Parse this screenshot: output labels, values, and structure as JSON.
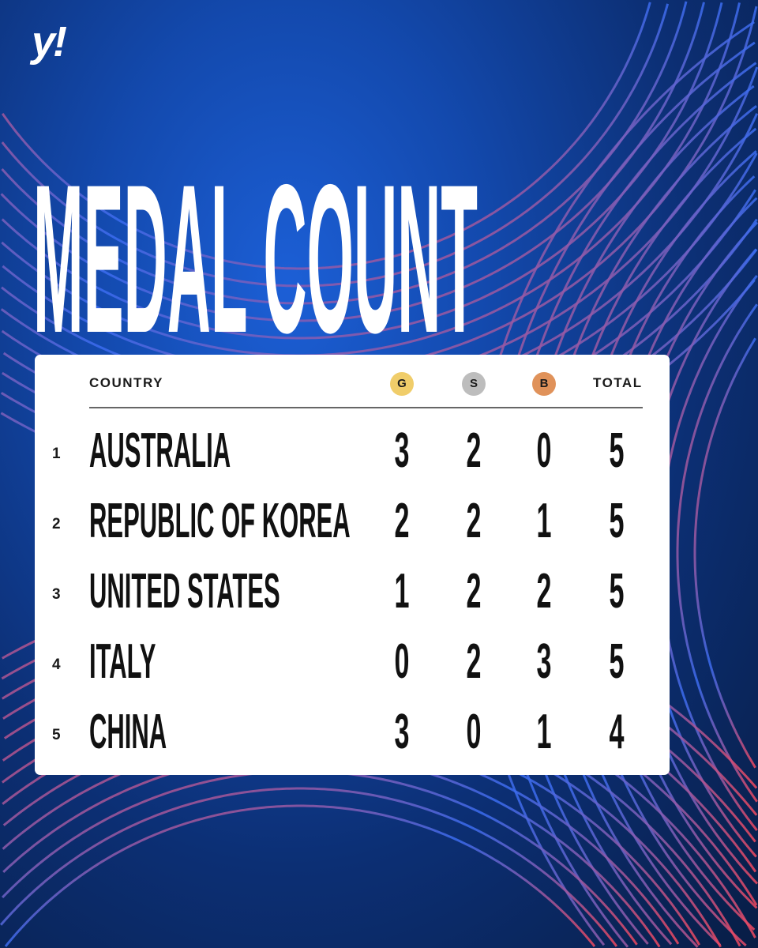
{
  "logo": "y!",
  "title": "MEDAL COUNT",
  "table": {
    "headers": {
      "country": "COUNTRY",
      "gold": "G",
      "silver": "S",
      "bronze": "B",
      "total": "TOTAL"
    },
    "rows": [
      {
        "rank": "1",
        "country": "AUSTRALIA",
        "gold": "3",
        "silver": "2",
        "bronze": "0",
        "total": "5"
      },
      {
        "rank": "2",
        "country": "REPUBLIC OF KOREA",
        "gold": "2",
        "silver": "2",
        "bronze": "1",
        "total": "5"
      },
      {
        "rank": "3",
        "country": "UNITED STATES",
        "gold": "1",
        "silver": "2",
        "bronze": "2",
        "total": "5"
      },
      {
        "rank": "4",
        "country": "ITALY",
        "gold": "0",
        "silver": "2",
        "bronze": "3",
        "total": "5"
      },
      {
        "rank": "5",
        "country": "CHINA",
        "gold": "3",
        "silver": "0",
        "bronze": "1",
        "total": "4"
      }
    ]
  },
  "colors": {
    "gold": "#f0cd6a",
    "silver": "#bdbdbd",
    "bronze": "#e0925a",
    "lineRed": "#f0485e",
    "lineBlue": "#3a6cf0"
  }
}
